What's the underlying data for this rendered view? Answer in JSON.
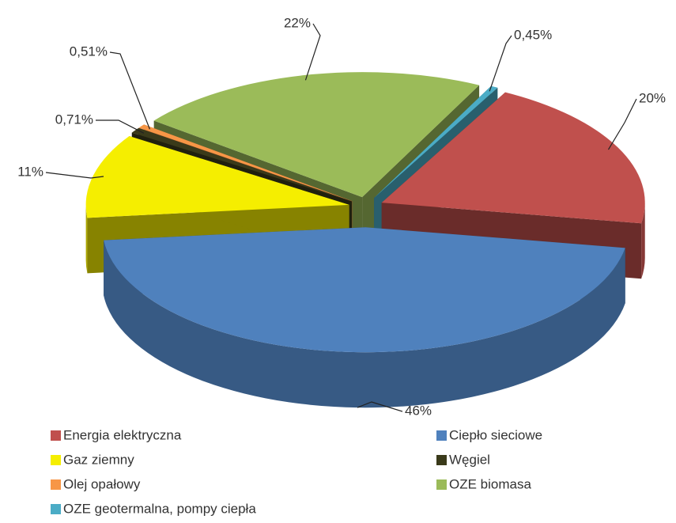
{
  "chart_data": {
    "type": "pie",
    "style": "3d-exploded",
    "categories": [
      "Energia elektryczna",
      "Ciepło sieciowe",
      "Gaz ziemny",
      "Węgiel",
      "Olej opałowy",
      "OZE biomasa",
      "OZE geotermalna, pompy ciepła"
    ],
    "values": [
      20,
      46,
      11,
      0.71,
      0.51,
      22,
      0.45
    ],
    "value_labels": [
      "20%",
      "46%",
      "11%",
      "0,71%",
      "0,51%",
      "22%",
      "0,45%"
    ],
    "colors": [
      "#c0504d",
      "#4f81bd",
      "#f5ee00",
      "#3a3a1a",
      "#f79646",
      "#9bbb59",
      "#4bacc6"
    ],
    "legend": "bottom"
  }
}
